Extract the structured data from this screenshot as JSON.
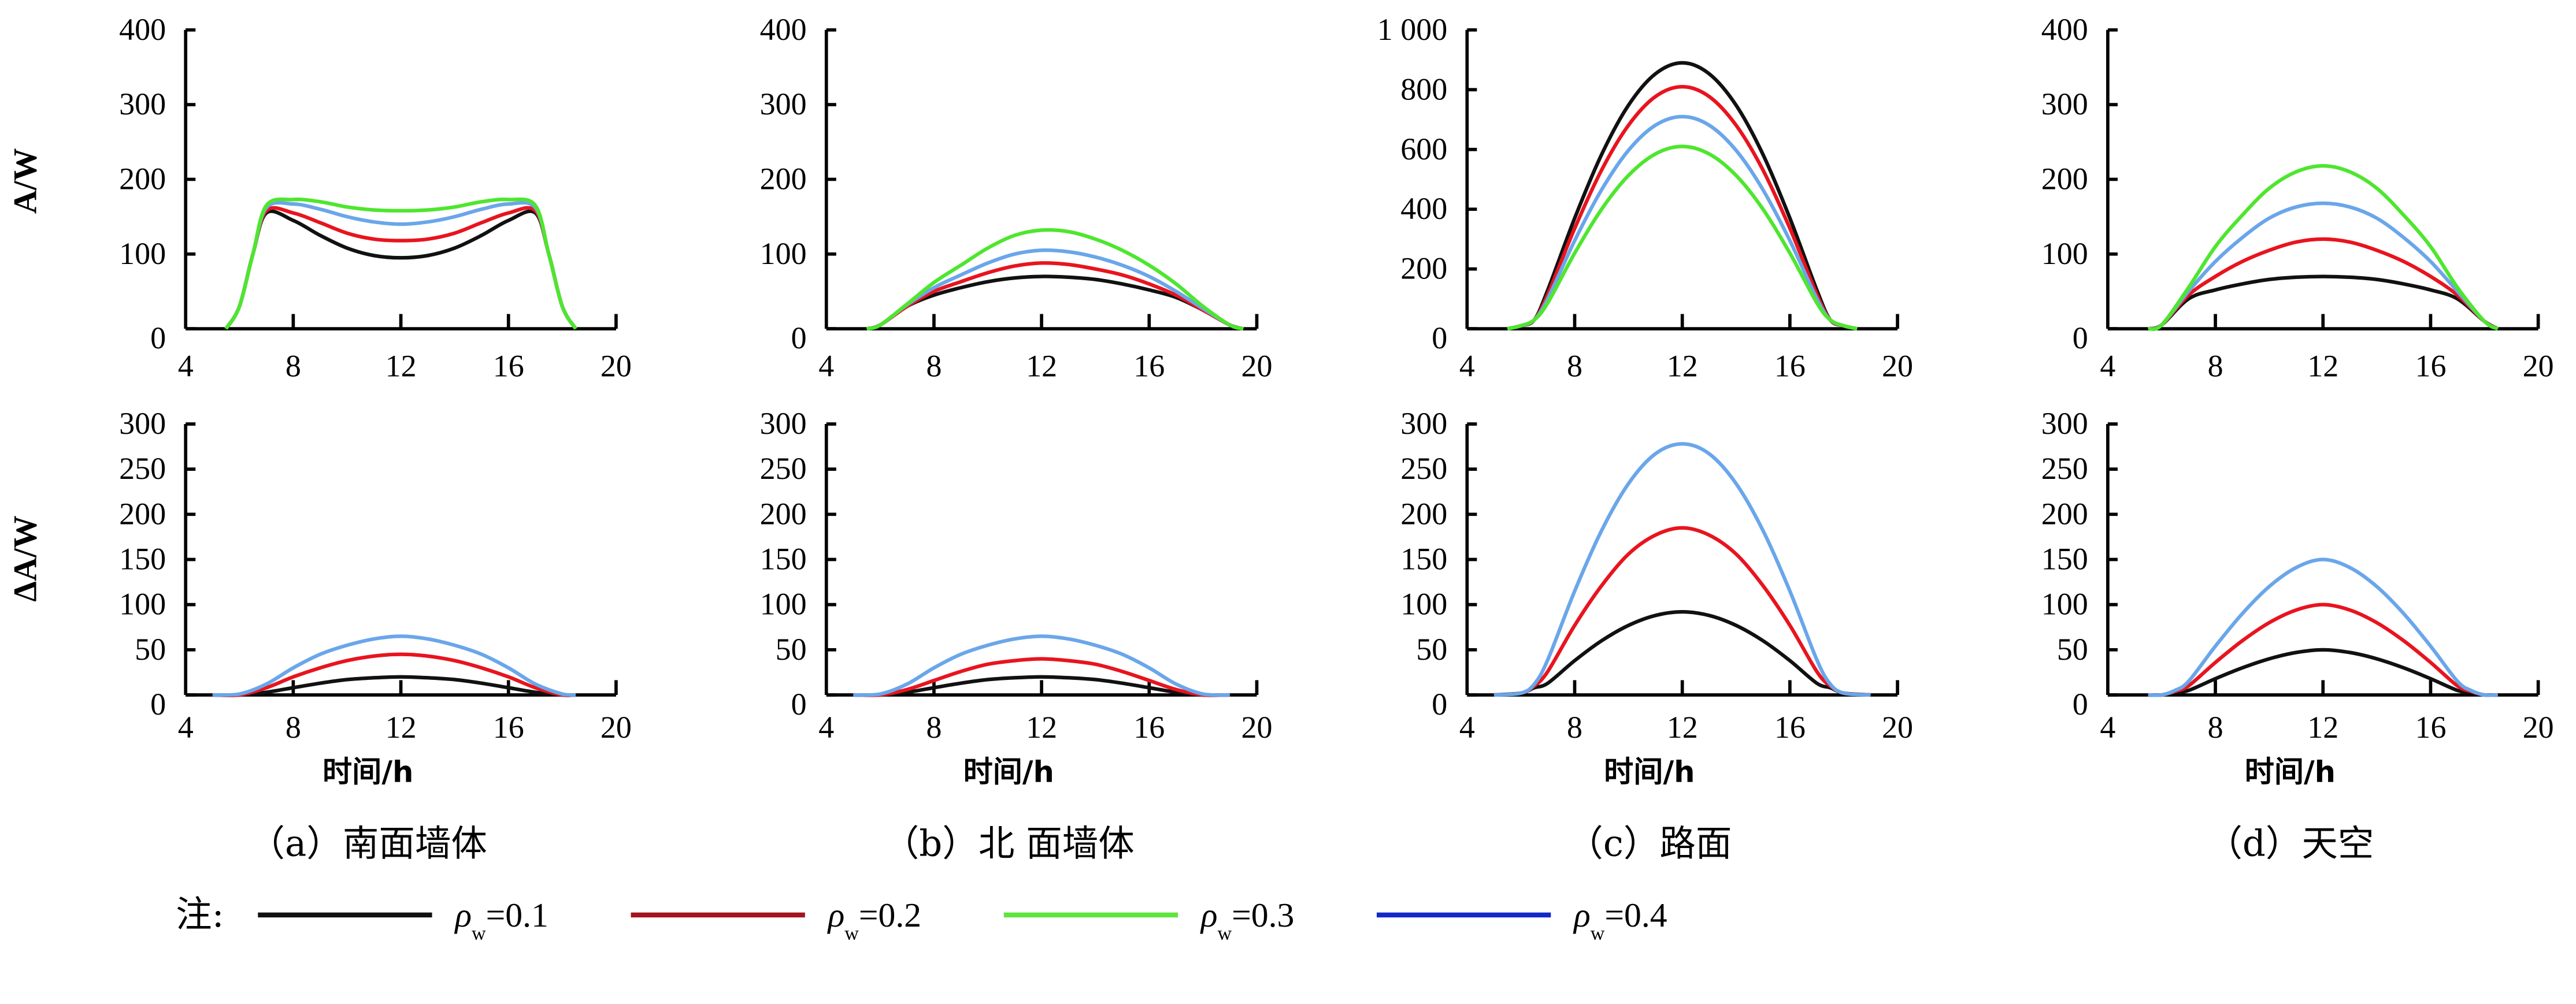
{
  "chart_data": {
    "type": "line",
    "ylabel_top": "A/W",
    "ylabel_bottom": "ΔA/W",
    "xlabel": "时间/h",
    "x_ticks": [
      "4",
      "8",
      "12",
      "16",
      "20"
    ],
    "xlim": [
      4,
      20
    ],
    "legend": {
      "prefix": "注:",
      "symbol": "ρ",
      "subscript": "w",
      "entries": [
        {
          "label": "=0.1",
          "color": "#111111"
        },
        {
          "label": "=0.2",
          "color": "#a3141e"
        },
        {
          "label": "=0.3",
          "color": "#5ee63e"
        },
        {
          "label": "=0.4",
          "color": "#1428c8"
        }
      ],
      "placement": "bottom"
    },
    "series_colors": {
      "0.1": "#111111",
      "0.2": "#e8141e",
      "0.3": "#4ee62e",
      "0.4": "#6aa6ea"
    },
    "panels": [
      {
        "caption": "（a）南面墙体",
        "top": {
          "ylim": [
            0,
            400
          ],
          "y_ticks": [
            "0",
            "100",
            "200",
            "300",
            "400"
          ],
          "x": [
            5.5,
            6,
            6.5,
            7,
            8,
            9,
            10,
            11,
            12,
            13,
            14,
            15,
            16,
            17,
            17.5,
            18,
            18.5
          ],
          "series": [
            {
              "name": "0.1",
              "values": [
                0,
                30,
                100,
                155,
                145,
                125,
                108,
                98,
                95,
                98,
                108,
                125,
                145,
                155,
                100,
                30,
                0
              ]
            },
            {
              "name": "0.2",
              "values": [
                0,
                30,
                100,
                158,
                155,
                142,
                128,
                120,
                118,
                120,
                128,
                142,
                155,
                158,
                100,
                30,
                0
              ]
            },
            {
              "name": "0.4",
              "values": [
                0,
                30,
                100,
                162,
                167,
                160,
                150,
                143,
                140,
                143,
                150,
                160,
                167,
                162,
                100,
                30,
                0
              ]
            },
            {
              "name": "0.3",
              "values": [
                0,
                30,
                100,
                165,
                173,
                170,
                163,
                159,
                158,
                159,
                163,
                170,
                173,
                165,
                100,
                30,
                0
              ]
            }
          ]
        },
        "bottom": {
          "ylim": [
            0,
            300
          ],
          "y_ticks": [
            "0",
            "50",
            "100",
            "150",
            "200",
            "250",
            "300"
          ],
          "x": [
            5,
            6,
            7,
            8,
            9,
            10,
            11,
            12,
            13,
            14,
            15,
            16,
            17,
            18,
            18.5
          ],
          "series": [
            {
              "name": "0.1",
              "values": [
                0,
                0,
                3,
                8,
                13,
                17,
                19,
                20,
                19,
                17,
                13,
                8,
                3,
                0,
                0
              ]
            },
            {
              "name": "0.2",
              "values": [
                0,
                0,
                8,
                20,
                30,
                38,
                43,
                45,
                43,
                38,
                30,
                20,
                8,
                0,
                0
              ]
            },
            {
              "name": "0.4",
              "values": [
                0,
                1,
                12,
                30,
                45,
                55,
                62,
                65,
                62,
                55,
                45,
                30,
                12,
                1,
                0
              ]
            }
          ]
        }
      },
      {
        "caption": "（b）北 面墙体",
        "top": {
          "ylim": [
            0,
            400
          ],
          "y_ticks": [
            "0",
            "100",
            "200",
            "300",
            "400"
          ],
          "x": [
            5.5,
            6,
            7,
            8,
            9,
            10,
            11,
            12,
            13,
            14,
            15,
            16,
            17,
            18,
            19,
            19.5
          ],
          "series": [
            {
              "name": "0.1",
              "values": [
                0,
                5,
                30,
                45,
                55,
                63,
                68,
                70,
                69,
                66,
                60,
                52,
                42,
                25,
                5,
                0
              ]
            },
            {
              "name": "0.2",
              "values": [
                0,
                5,
                30,
                50,
                63,
                75,
                84,
                88,
                86,
                80,
                72,
                60,
                45,
                25,
                5,
                0
              ]
            },
            {
              "name": "0.4",
              "values": [
                0,
                5,
                32,
                55,
                72,
                88,
                100,
                105,
                103,
                96,
                85,
                70,
                50,
                27,
                5,
                0
              ]
            },
            {
              "name": "0.3",
              "values": [
                0,
                5,
                33,
                62,
                85,
                108,
                125,
                132,
                130,
                120,
                105,
                85,
                60,
                30,
                5,
                0
              ]
            }
          ]
        },
        "bottom": {
          "ylim": [
            0,
            300
          ],
          "y_ticks": [
            "0",
            "50",
            "100",
            "150",
            "200",
            "250",
            "300"
          ],
          "x": [
            5,
            6,
            7,
            8,
            9,
            10,
            11,
            12,
            13,
            14,
            15,
            16,
            17,
            18,
            19
          ],
          "series": [
            {
              "name": "0.1",
              "values": [
                0,
                0,
                3,
                8,
                13,
                17,
                19,
                20,
                19,
                17,
                13,
                8,
                3,
                0,
                0
              ]
            },
            {
              "name": "0.2",
              "values": [
                0,
                0,
                6,
                16,
                26,
                34,
                38,
                40,
                38,
                34,
                26,
                16,
                6,
                0,
                0
              ]
            },
            {
              "name": "0.4",
              "values": [
                0,
                1,
                12,
                30,
                45,
                55,
                62,
                65,
                62,
                55,
                45,
                30,
                12,
                1,
                0
              ]
            }
          ]
        }
      },
      {
        "caption": "（c）路面",
        "top": {
          "ylim": [
            0,
            1000
          ],
          "y_ticks": [
            "0",
            "200",
            "400",
            "600",
            "800",
            "1 000"
          ],
          "x": [
            5.5,
            6,
            6.5,
            7,
            8,
            9,
            10,
            11,
            12,
            13,
            14,
            15,
            16,
            17,
            17.5,
            18,
            18.5
          ],
          "series": [
            {
              "name": "0.1",
              "values": [
                0,
                10,
                30,
                130,
                370,
                583,
                748,
                853,
                890,
                853,
                748,
                583,
                370,
                130,
                30,
                10,
                0
              ]
            },
            {
              "name": "0.2",
              "values": [
                0,
                10,
                30,
                115,
                336,
                531,
                681,
                777,
                810,
                777,
                681,
                531,
                336,
                115,
                30,
                10,
                0
              ]
            },
            {
              "name": "0.4",
              "values": [
                0,
                10,
                30,
                101,
                295,
                465,
                597,
                681,
                710,
                681,
                597,
                465,
                295,
                101,
                30,
                10,
                0
              ]
            },
            {
              "name": "0.3",
              "values": [
                0,
                10,
                30,
                87,
                253,
                400,
                513,
                585,
                610,
                585,
                513,
                400,
                253,
                87,
                30,
                10,
                0
              ]
            }
          ]
        },
        "bottom": {
          "ylim": [
            0,
            300
          ],
          "y_ticks": [
            "0",
            "50",
            "100",
            "150",
            "200",
            "250",
            "300"
          ],
          "x": [
            5,
            6,
            6.5,
            7,
            8,
            9,
            10,
            11,
            12,
            13,
            14,
            15,
            16,
            17,
            17.5,
            18,
            19
          ],
          "series": [
            {
              "name": "0.1",
              "values": [
                0,
                2,
                8,
                13,
                38,
                60,
                77,
                88,
                92,
                88,
                77,
                60,
                38,
                13,
                8,
                2,
                0
              ]
            },
            {
              "name": "0.2",
              "values": [
                0,
                2,
                10,
                26,
                77,
                121,
                156,
                177,
                185,
                177,
                156,
                121,
                77,
                26,
                10,
                2,
                0
              ]
            },
            {
              "name": "0.4",
              "values": [
                0,
                2,
                12,
                39,
                115,
                182,
                234,
                267,
                278,
                267,
                234,
                182,
                115,
                39,
                12,
                2,
                0
              ]
            }
          ]
        }
      },
      {
        "caption": "（d）天空",
        "top": {
          "ylim": [
            0,
            400
          ],
          "y_ticks": [
            "0",
            "100",
            "200",
            "300",
            "400"
          ],
          "x": [
            5.5,
            6,
            7,
            8,
            9,
            10,
            11,
            12,
            13,
            14,
            15,
            16,
            17,
            18,
            18.5
          ],
          "series": [
            {
              "name": "0.1",
              "values": [
                0,
                5,
                40,
                52,
                60,
                66,
                69,
                70,
                69,
                66,
                60,
                52,
                40,
                10,
                0
              ]
            },
            {
              "name": "0.2",
              "values": [
                0,
                5,
                45,
                70,
                90,
                105,
                116,
                120,
                116,
                105,
                90,
                70,
                45,
                10,
                0
              ]
            },
            {
              "name": "0.4",
              "values": [
                0,
                5,
                50,
                90,
                122,
                148,
                163,
                168,
                163,
                148,
                122,
                90,
                50,
                10,
                0
              ]
            },
            {
              "name": "0.3",
              "values": [
                0,
                5,
                55,
                110,
                152,
                188,
                210,
                218,
                210,
                188,
                152,
                110,
                55,
                10,
                0
              ]
            }
          ]
        },
        "bottom": {
          "ylim": [
            0,
            300
          ],
          "y_ticks": [
            "0",
            "50",
            "100",
            "150",
            "200",
            "250",
            "300"
          ],
          "x": [
            5.5,
            6,
            6.5,
            7,
            8,
            9,
            10,
            11,
            12,
            13,
            14,
            15,
            16,
            17,
            17.5,
            18,
            18.5
          ],
          "series": [
            {
              "name": "0.1",
              "values": [
                0,
                0,
                3,
                5,
                18,
                30,
                40,
                47,
                50,
                47,
                40,
                30,
                18,
                5,
                3,
                0,
                0
              ]
            },
            {
              "name": "0.2",
              "values": [
                0,
                0,
                4,
                10,
                36,
                60,
                80,
                94,
                100,
                94,
                80,
                60,
                36,
                10,
                4,
                0,
                0
              ]
            },
            {
              "name": "0.4",
              "values": [
                0,
                0,
                5,
                15,
                54,
                90,
                120,
                141,
                150,
                141,
                120,
                90,
                54,
                15,
                5,
                0,
                0
              ]
            }
          ]
        }
      }
    ]
  }
}
